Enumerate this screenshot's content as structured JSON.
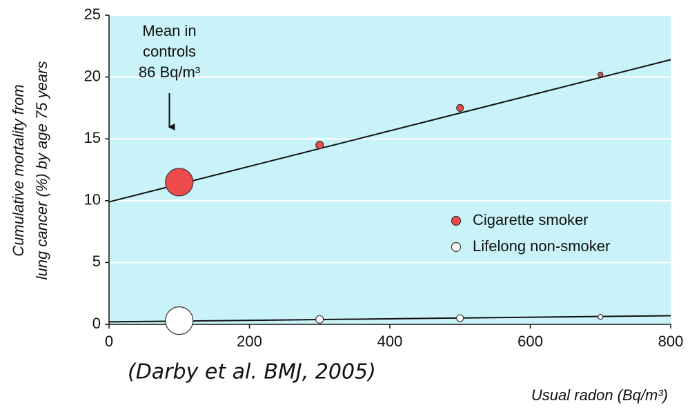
{
  "chart_data": {
    "type": "scatter",
    "ylabel": [
      "Cumulative mortality from",
      "lung cancer (%) by age 75 years"
    ],
    "xlabel": "Usual radon (Bq/m³)",
    "citation": "(Darby et al. BMJ, 2005)",
    "annotation": {
      "lines": [
        "Mean in",
        "controls",
        "86 Bq/m³"
      ],
      "x": 86
    },
    "xlim": [
      0,
      800
    ],
    "xticks": [
      0,
      200,
      400,
      600,
      800
    ],
    "ylim": [
      0,
      25
    ],
    "yticks": [
      0,
      5,
      10,
      15,
      20,
      25
    ],
    "grid": true,
    "background": "#c9f3f8",
    "legend": "right",
    "series": [
      {
        "name": "Cigarette smoker",
        "color": "#ee4c4c",
        "x": [
          100,
          300,
          500,
          700
        ],
        "values": [
          11.5,
          14.5,
          17.5,
          20.2
        ],
        "sizes": [
          20,
          5.5,
          5,
          3.5
        ],
        "fit": {
          "x": [
            0,
            800
          ],
          "y": [
            9.9,
            21.4
          ]
        }
      },
      {
        "name": "Lifelong non-smoker",
        "color": "#ffffff",
        "x": [
          100,
          300,
          500,
          700
        ],
        "values": [
          0.3,
          0.4,
          0.5,
          0.6
        ],
        "sizes": [
          20,
          5.5,
          5,
          3.5
        ],
        "fit": {
          "x": [
            0,
            800
          ],
          "y": [
            0.2,
            0.7
          ]
        }
      }
    ]
  }
}
